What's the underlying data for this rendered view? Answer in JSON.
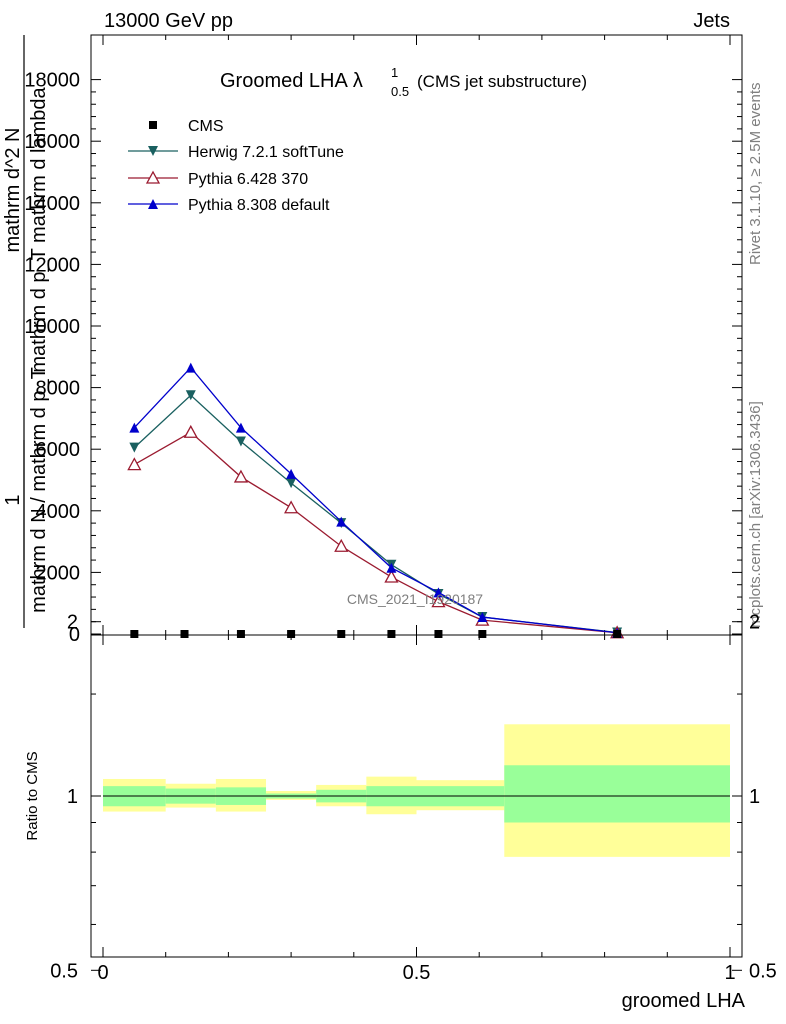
{
  "header": {
    "left": "13000 GeV pp",
    "right": "Jets"
  },
  "side": {
    "rivet": "Rivet 3.1.10, ≥ 2.5M events",
    "mcplots": "mcplots.cern.ch [arXiv:1306.3436]"
  },
  "watermark": "CMS_2021_I1920187",
  "title": {
    "main": "Groomed LHA",
    "lambda": "λ",
    "sup": "1",
    "sub": "0.5",
    "note": "(CMS jet substructure)"
  },
  "ylabel": {
    "one": "1",
    "line1": "mathrm d N / mathrm d p_T",
    "line2": "mathrm d^2 N",
    "line3": "mathrm d p_T mathrm d lambda"
  },
  "ratio_ylabel": "Ratio to CMS",
  "xlabel": "groomed LHA",
  "colors": {
    "cms": "#000000",
    "herwig": "#1a6060",
    "pythia6": "#9b1b30",
    "pythia8": "#0000cc",
    "band_inner": "#99ff99",
    "band_outer": "#ffff99"
  },
  "chart_data": [
    {
      "type": "line",
      "title": "Groomed LHA λ^1_0.5 (CMS jet substructure)",
      "xlabel": "groomed LHA",
      "ylabel": "1 / (mathrm d N / mathrm d p_T) · mathrm d^2 N / (mathrm d p_T mathrm d lambda)",
      "xlim": [
        0,
        1
      ],
      "ylim": [
        0,
        19500
      ],
      "yticks": [
        0,
        2000,
        4000,
        6000,
        8000,
        10000,
        12000,
        14000,
        16000,
        18000
      ],
      "ytick_labels": [
        "0",
        "2000",
        "4000",
        "6000",
        "8000",
        "10000",
        "12000",
        "14000",
        "16000",
        "18000"
      ],
      "legend_position": "top-left",
      "series": [
        {
          "name": "CMS",
          "marker": "square",
          "x": [
            0.05,
            0.13,
            0.22,
            0.3,
            0.38,
            0.46,
            0.535,
            0.605,
            0.82
          ],
          "y": [
            0,
            0,
            0,
            0,
            0,
            0,
            0,
            0,
            0
          ]
        },
        {
          "name": "Herwig 7.2.1 softTune",
          "marker": "triangle-down",
          "x": [
            0.05,
            0.14,
            0.22,
            0.3,
            0.38,
            0.46,
            0.535,
            0.605,
            0.82
          ],
          "y": [
            6050,
            7750,
            6250,
            4900,
            3600,
            2250,
            1300,
            550,
            50
          ]
        },
        {
          "name": "Pythia 6.428 370",
          "marker": "triangle-open",
          "x": [
            0.05,
            0.14,
            0.22,
            0.3,
            0.38,
            0.46,
            0.535,
            0.605,
            0.82
          ],
          "y": [
            5500,
            6550,
            5100,
            4100,
            2850,
            1850,
            1050,
            450,
            40
          ]
        },
        {
          "name": "Pythia 8.308 default",
          "marker": "triangle-up",
          "x": [
            0.05,
            0.14,
            0.22,
            0.3,
            0.38,
            0.46,
            0.535,
            0.605,
            0.82
          ],
          "y": [
            6700,
            8650,
            6700,
            5200,
            3650,
            2150,
            1350,
            550,
            40
          ]
        }
      ]
    },
    {
      "type": "area",
      "ylabel": "Ratio to CMS",
      "xlabel": "groomed LHA",
      "xlim": [
        0,
        1
      ],
      "ylim": [
        0.4,
        2.3
      ],
      "scale": "log",
      "xticks": [
        0,
        0.5,
        1
      ],
      "xtick_labels": [
        "0",
        "0.5",
        "1"
      ],
      "yticks": [
        0.5,
        1,
        2
      ],
      "ytick_labels": [
        "0.5",
        "1",
        "2"
      ],
      "bins": [
        {
          "x0": 0.0,
          "x1": 0.1,
          "inner": [
            0.96,
            1.04
          ],
          "outer": [
            0.94,
            1.07
          ]
        },
        {
          "x0": 0.1,
          "x1": 0.18,
          "inner": [
            0.97,
            1.03
          ],
          "outer": [
            0.955,
            1.05
          ]
        },
        {
          "x0": 0.18,
          "x1": 0.26,
          "inner": [
            0.965,
            1.035
          ],
          "outer": [
            0.94,
            1.07
          ]
        },
        {
          "x0": 0.26,
          "x1": 0.34,
          "inner": [
            0.99,
            1.01
          ],
          "outer": [
            0.985,
            1.02
          ]
        },
        {
          "x0": 0.34,
          "x1": 0.42,
          "inner": [
            0.975,
            1.025
          ],
          "outer": [
            0.96,
            1.045
          ]
        },
        {
          "x0": 0.42,
          "x1": 0.5,
          "inner": [
            0.96,
            1.04
          ],
          "outer": [
            0.93,
            1.08
          ]
        },
        {
          "x0": 0.5,
          "x1": 0.64,
          "inner": [
            0.96,
            1.04
          ],
          "outer": [
            0.945,
            1.065
          ]
        },
        {
          "x0": 0.64,
          "x1": 1.0,
          "inner": [
            0.9,
            1.13
          ],
          "outer": [
            0.785,
            1.33
          ]
        }
      ],
      "reference": 1
    }
  ]
}
